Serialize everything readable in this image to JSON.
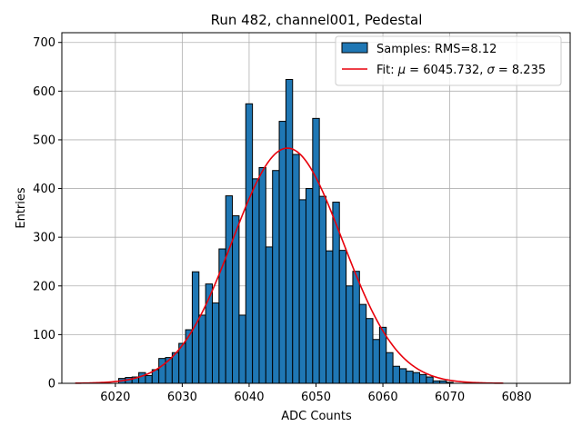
{
  "chart_data": {
    "type": "bar",
    "title": "Run 482, channel001, Pedestal",
    "xlabel": "ADC Counts",
    "ylabel": "Entries",
    "xlim": [
      6012,
      6088
    ],
    "ylim": [
      0,
      720
    ],
    "xticks": [
      6020,
      6030,
      6040,
      6050,
      6060,
      6070,
      6080
    ],
    "yticks": [
      0,
      100,
      200,
      300,
      400,
      500,
      600,
      700
    ],
    "grid": true,
    "legend_position": "top-right",
    "colors": {
      "bars": "#1f77b4",
      "bar_edge": "#000000",
      "fit": "#e8000b",
      "grid": "#b0b0b0"
    },
    "histogram": {
      "name": "Samples: RMS=8.12",
      "bin_width": 1,
      "bins": [
        {
          "x": 6021,
          "y": 10
        },
        {
          "x": 6022,
          "y": 12
        },
        {
          "x": 6023,
          "y": 13
        },
        {
          "x": 6024,
          "y": 22
        },
        {
          "x": 6025,
          "y": 16
        },
        {
          "x": 6026,
          "y": 28
        },
        {
          "x": 6027,
          "y": 51
        },
        {
          "x": 6028,
          "y": 53
        },
        {
          "x": 6029,
          "y": 63
        },
        {
          "x": 6030,
          "y": 82
        },
        {
          "x": 6031,
          "y": 110
        },
        {
          "x": 6032,
          "y": 229
        },
        {
          "x": 6033,
          "y": 140
        },
        {
          "x": 6034,
          "y": 204
        },
        {
          "x": 6035,
          "y": 165
        },
        {
          "x": 6036,
          "y": 276
        },
        {
          "x": 6037,
          "y": 385
        },
        {
          "x": 6038,
          "y": 344
        },
        {
          "x": 6039,
          "y": 140
        },
        {
          "x": 6040,
          "y": 574
        },
        {
          "x": 6041,
          "y": 420
        },
        {
          "x": 6042,
          "y": 443
        },
        {
          "x": 6043,
          "y": 280
        },
        {
          "x": 6044,
          "y": 437
        },
        {
          "x": 6045,
          "y": 538
        },
        {
          "x": 6046,
          "y": 624
        },
        {
          "x": 6047,
          "y": 470
        },
        {
          "x": 6048,
          "y": 377
        },
        {
          "x": 6049,
          "y": 400
        },
        {
          "x": 6050,
          "y": 544
        },
        {
          "x": 6051,
          "y": 384
        },
        {
          "x": 6052,
          "y": 272
        },
        {
          "x": 6053,
          "y": 372
        },
        {
          "x": 6054,
          "y": 273
        },
        {
          "x": 6055,
          "y": 200
        },
        {
          "x": 6056,
          "y": 230
        },
        {
          "x": 6057,
          "y": 162
        },
        {
          "x": 6058,
          "y": 133
        },
        {
          "x": 6059,
          "y": 90
        },
        {
          "x": 6060,
          "y": 115
        },
        {
          "x": 6061,
          "y": 63
        },
        {
          "x": 6062,
          "y": 35
        },
        {
          "x": 6063,
          "y": 30
        },
        {
          "x": 6064,
          "y": 25
        },
        {
          "x": 6065,
          "y": 22
        },
        {
          "x": 6066,
          "y": 18
        },
        {
          "x": 6067,
          "y": 13
        },
        {
          "x": 6068,
          "y": 5
        },
        {
          "x": 6069,
          "y": 5
        },
        {
          "x": 6070,
          "y": 2
        }
      ]
    },
    "fit": {
      "name": "Fit: μ = 6045.732, σ = 8.235",
      "type": "gaussian",
      "mu": 6045.732,
      "sigma": 8.235,
      "amplitude": 483,
      "x_range": [
        6014,
        6078
      ]
    },
    "legend": {
      "samples_label": "Samples: RMS=8.12",
      "fit_label_prefix": "Fit: ",
      "fit_mu_symbol": "μ",
      "fit_mu_value": " = 6045.732, ",
      "fit_sigma_symbol": "σ",
      "fit_sigma_value": " = 8.235"
    }
  }
}
